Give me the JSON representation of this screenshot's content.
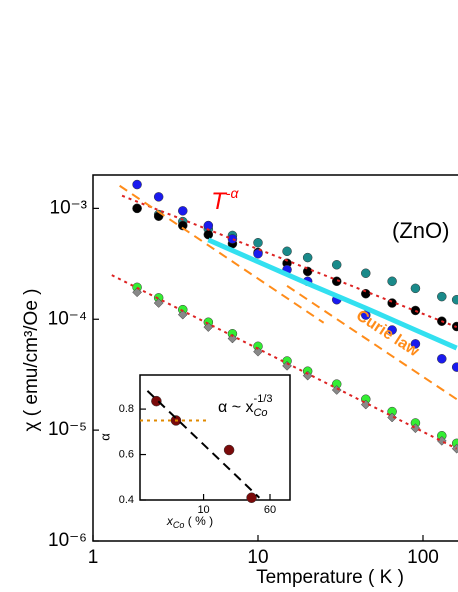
{
  "chart_data": [
    {
      "type": "scatter",
      "title": "(ZnO)",
      "x_label": "Temperature   ( K )",
      "y_label": "χ   ( emu/cm³/Oe )",
      "annotations": [
        {
          "text": "T",
          "sup": "-α",
          "color": "#ff0000",
          "x": 5.2,
          "y": 0.00112
        },
        {
          "text": "Curie law",
          "color": "#ff8c1a",
          "x": 40,
          "y": 0.00011
        }
      ],
      "log_x": true,
      "log_y": true,
      "xlim": [
        1,
        163
      ],
      "xticks": [
        1,
        10,
        100
      ],
      "ylim": [
        1e-06,
        0.002
      ],
      "yticks": [
        {
          "value": 1e-06,
          "label": "10⁻⁶"
        },
        {
          "value": 1e-05,
          "label": "10⁻⁵"
        },
        {
          "value": 0.0001,
          "label": "10⁻⁴"
        },
        {
          "value": 0.001,
          "label": "10⁻³"
        }
      ],
      "series": [
        {
          "color": "#1a8a8a",
          "style": "circle",
          "x": [
            1.85,
            2.5,
            3.5,
            5,
            7,
            10,
            15,
            20,
            30,
            45,
            65,
            90,
            130,
            160
          ],
          "values": [
            0.001,
            0.00088,
            0.00076,
            0.00065,
            0.00057,
            0.00049,
            0.00041,
            0.00036,
            0.00031,
            0.00026,
            0.00022,
            0.00019,
            0.00016,
            0.00015
          ]
        },
        {
          "color": "#000000",
          "style": "circle",
          "x": [
            1.85,
            2.5,
            3.5,
            5,
            7,
            10,
            15,
            20,
            30,
            45,
            65,
            90,
            130,
            160
          ],
          "values": [
            0.001,
            0.00085,
            0.0007,
            0.00058,
            0.00048,
            0.0004,
            0.00032,
            0.00027,
            0.00022,
            0.00017,
            0.00014,
            0.00012,
            9.6e-05,
            8.6e-05
          ]
        },
        {
          "color": "#1a1aee",
          "style": "circle",
          "x": [
            1.85,
            2.5,
            3.5,
            5,
            7,
            10,
            15,
            20,
            30,
            45,
            65,
            90,
            130,
            160
          ],
          "values": [
            0.00164,
            0.00127,
            0.00095,
            0.0007,
            0.00053,
            0.00039,
            0.00028,
            0.00022,
            0.00015,
            0.000109,
            8e-05,
            6e-05,
            4.4e-05,
            3.7e-05
          ]
        },
        {
          "color": "#33e0f0",
          "style": "solid",
          "x": [
            5,
            10,
            20,
            45,
            90,
            160
          ],
          "values": [
            0.00052,
            0.00033,
            0.00021,
            0.000126,
            8e-05,
            5.5e-05
          ]
        },
        {
          "color": "#33ee33",
          "style": "circle",
          "x": [
            1.85,
            2.5,
            3.5,
            5,
            7,
            10,
            15,
            20,
            30,
            45,
            65,
            90,
            130,
            160
          ],
          "values": [
            0.000194,
            0.000156,
            0.000122,
            9.4e-05,
            7.4e-05,
            5.7e-05,
            4.2e-05,
            3.4e-05,
            2.6e-05,
            1.9e-05,
            1.47e-05,
            1.16e-05,
            8.9e-06,
            7.6e-06
          ]
        },
        {
          "color": "#888888",
          "style": "diamond",
          "x": [
            1.85,
            2.5,
            3.5,
            5,
            7,
            10,
            15,
            20,
            30,
            45,
            65,
            90,
            130,
            160
          ],
          "values": [
            0.000175,
            0.00014,
            0.00011,
            8.5e-05,
            6.7e-05,
            5.1e-05,
            3.8e-05,
            3.1e-05,
            2.3e-05,
            1.7e-05,
            1.3e-05,
            1.04e-05,
            8e-06,
            6.8e-06
          ]
        },
        {
          "color": "#dd2222",
          "style": "dotted",
          "x": [
            1.5,
            160
          ],
          "values": [
            0.0013,
            8.5e-05
          ]
        },
        {
          "color": "#dd2222",
          "style": "dotted",
          "x": [
            1.3,
            160
          ],
          "values": [
            0.00025,
            6.8e-06
          ]
        },
        {
          "color": "#ff8c1a",
          "style": "dashed",
          "x": [
            1.45,
            25
          ],
          "values": [
            0.0016,
            9.3e-05
          ]
        },
        {
          "color": "#ff8c1a",
          "style": "dashed",
          "x": [
            15,
            160
          ],
          "values": [
            0.0002,
            1.9e-05
          ]
        }
      ]
    },
    {
      "type": "scatter",
      "x_label": {
        "text": "x",
        "sub": "Co",
        "rest": " ( % )"
      },
      "y_label": "α",
      "annotation": {
        "text": "α ~ x",
        "sub": "Co",
        "sup": "-1/3"
      },
      "log_x": true,
      "xlim": [
        1.8,
        60
      ],
      "xticks": [
        10,
        60
      ],
      "ylim": [
        0.4,
        0.95
      ],
      "yticks": [
        0.4,
        0.6,
        0.8
      ],
      "series": [
        {
          "color": "#7a0a0a",
          "style": "circle",
          "x": [
            2.8,
            4.75,
            19.9,
            36.5
          ],
          "values": [
            0.835,
            0.75,
            0.62,
            0.41
          ]
        },
        {
          "color": "#000000",
          "style": "dashed",
          "x": [
            2.2,
            45
          ],
          "values": [
            0.88,
            0.41
          ]
        },
        {
          "color": "#e08a00",
          "style": "dotted",
          "x": [
            1.8,
            11.2
          ],
          "values": [
            0.75,
            0.75
          ]
        }
      ]
    }
  ]
}
